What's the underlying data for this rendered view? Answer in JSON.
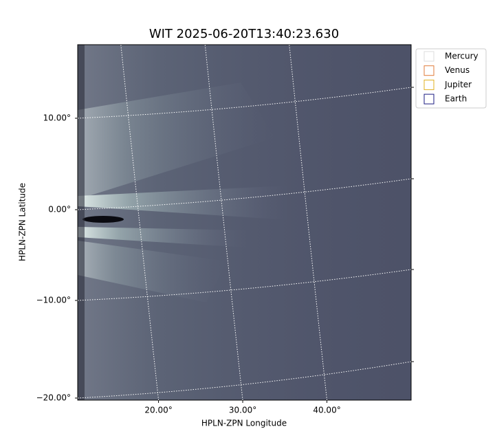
{
  "chart_data": {
    "type": "image",
    "title": "WIT 2025-06-20T13:40:23.630",
    "x_label": "HPLN-ZPN Longitude",
    "y_label": "HPLN-ZPN Latitude",
    "xlim": [
      10.4,
      50
    ],
    "ylim": [
      -20.2,
      17.9
    ],
    "xticks": [
      {
        "value": 20,
        "label": "20.00°"
      },
      {
        "value": 30,
        "label": "30.00°"
      },
      {
        "value": 40,
        "label": "40.00°"
      }
    ],
    "yticks": [
      {
        "value": -20,
        "label": "−20.00°"
      },
      {
        "value": -10,
        "label": "−10.00°"
      },
      {
        "value": 0,
        "label": "0.00°"
      },
      {
        "value": 10,
        "label": "10.00°"
      }
    ],
    "grid": true,
    "legend_position": "upper-right-outside",
    "legend": [
      {
        "name": "Mercury",
        "color": "#dddddd"
      },
      {
        "name": "Venus",
        "color": "#e07b39"
      },
      {
        "name": "Jupiter",
        "color": "#e0b020"
      },
      {
        "name": "Earth",
        "color": "#1a1a80"
      }
    ]
  }
}
